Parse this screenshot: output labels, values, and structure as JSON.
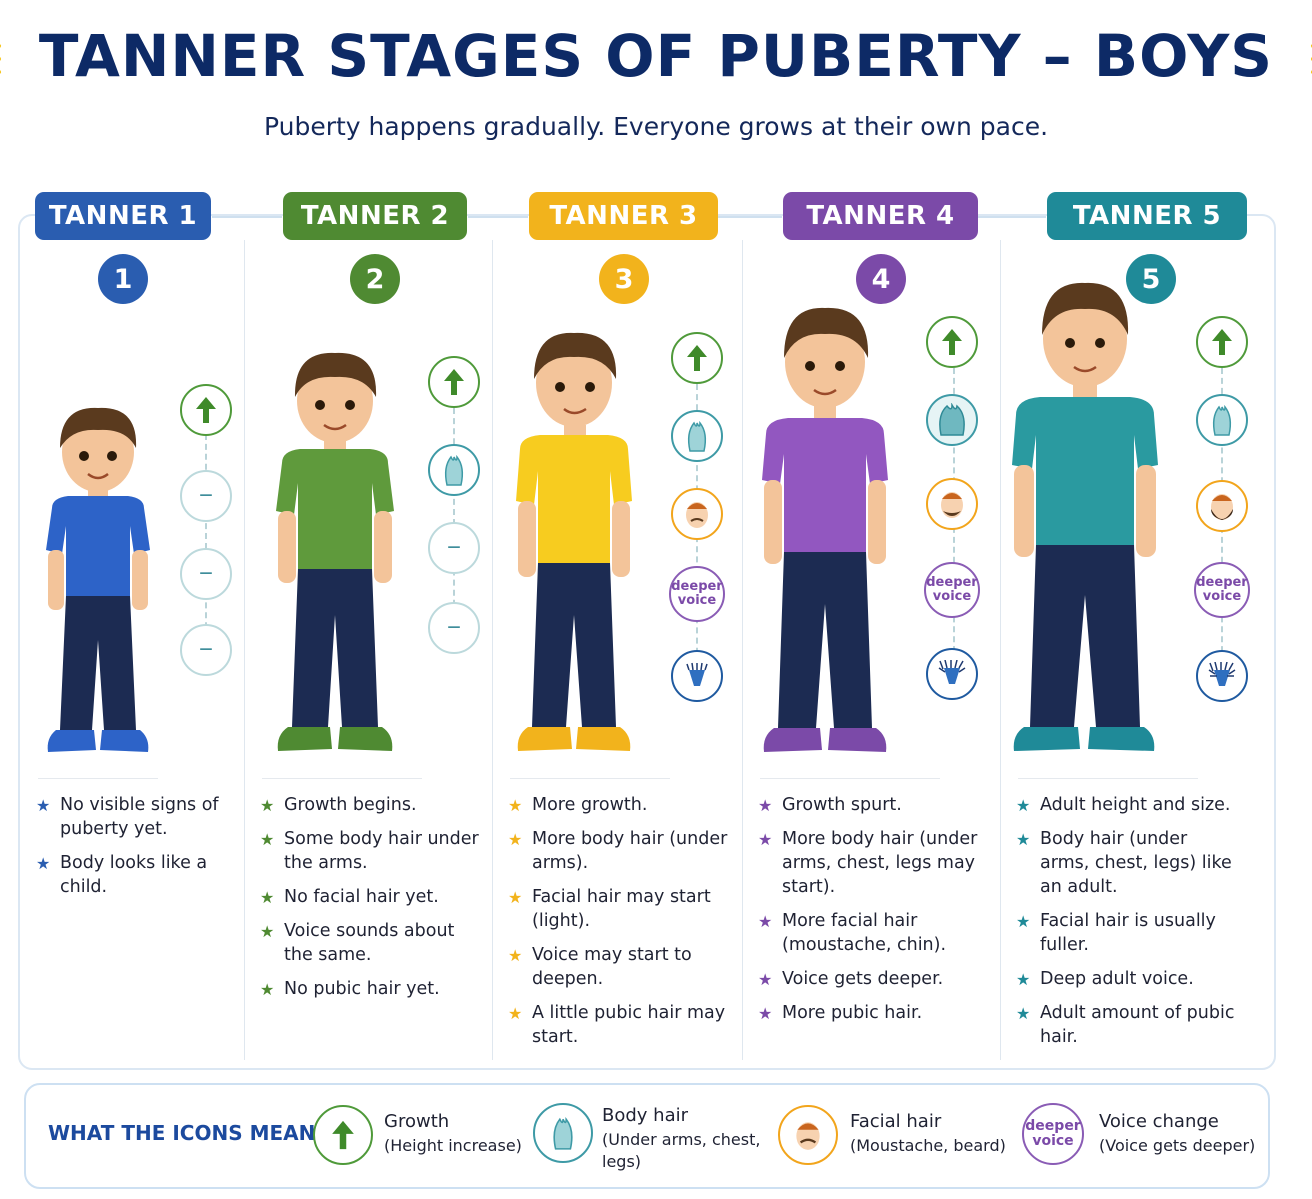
{
  "title": "TANNER STAGES OF PUBERTY – BOYS",
  "subtitle": "Puberty happens gradually. Everyone grows at their own pace.",
  "stages": [
    {
      "label": "TANNER 1",
      "number": "1",
      "color": "#2a5db0",
      "bullets": [
        "No visible signs of puberty yet.",
        "Body looks like a child."
      ]
    },
    {
      "label": "TANNER 2",
      "number": "2",
      "color": "#4f8a32",
      "bullets": [
        "Growth begins.",
        "Some body hair under the arms.",
        "No facial hair yet.",
        "Voice sounds about the same.",
        "No pubic hair yet."
      ]
    },
    {
      "label": "TANNER 3",
      "number": "3",
      "color": "#f2b31c",
      "bullets": [
        "More growth.",
        "More body hair (under arms).",
        "Facial hair may start (light).",
        "Voice may start to deepen.",
        "A little pubic hair may start."
      ]
    },
    {
      "label": "TANNER 4",
      "number": "4",
      "color": "#7b4aa8",
      "bullets": [
        "Growth spurt.",
        "More body hair (under arms, chest, legs may start).",
        "More facial hair (moustache, chin).",
        "Voice gets deeper.",
        "More pubic hair."
      ]
    },
    {
      "label": "TANNER 5",
      "number": "5",
      "color": "#1f8a98",
      "bullets": [
        "Adult height and size.",
        "Body hair (under arms, chest, legs) like an adult.",
        "Facial hair is usually fuller.",
        "Deep adult voice.",
        "Adult amount of pubic hair."
      ]
    }
  ],
  "icon_voice_text": "deeper voice",
  "legend": {
    "title": "WHAT THE ICONS MEAN:",
    "items": [
      {
        "icon": "growth-arrow-icon",
        "heading": "Growth",
        "sub": "(Height increase)"
      },
      {
        "icon": "body-hair-icon",
        "heading": "Body hair",
        "sub": "(Under arms, chest, legs)"
      },
      {
        "icon": "facial-hair-icon",
        "heading": "Facial hair",
        "sub": "(Moustache, beard)"
      },
      {
        "icon": "voice-change-icon",
        "heading": "Voice change",
        "sub": "(Voice gets deeper)"
      }
    ]
  }
}
